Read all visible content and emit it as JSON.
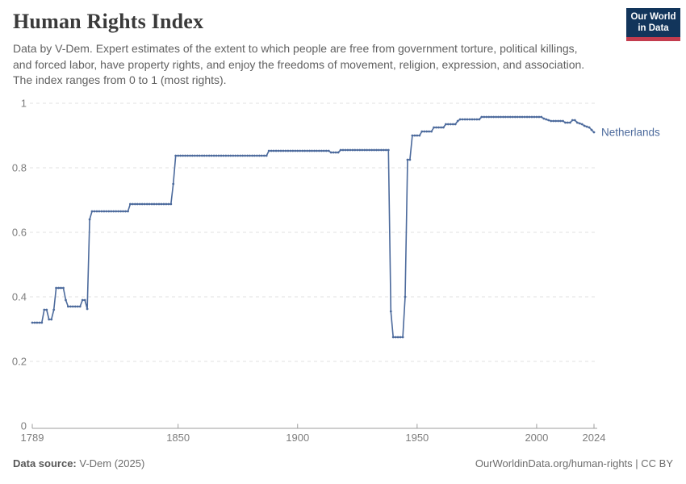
{
  "header": {
    "title": "Human Rights Index",
    "subtitle": "Data by V-Dem. Expert estimates of the extent to which people are free from government torture, political killings, and forced labor, have property rights, and enjoy the freedoms of movement, religion, expression, and association. The index ranges from 0 to 1 (most rights)."
  },
  "logo": {
    "line1": "Our World",
    "line2": "in Data",
    "bg_color": "#12355b",
    "accent_color": "#c33c4e"
  },
  "chart_data": {
    "type": "line",
    "title": "Human Rights Index",
    "xlabel": "",
    "ylabel": "",
    "xlim": [
      1789,
      2024
    ],
    "ylim": [
      0,
      1
    ],
    "xticks": [
      1789,
      1850,
      1900,
      1950,
      2000,
      2024
    ],
    "yticks": [
      0,
      0.2,
      0.4,
      0.6,
      0.8,
      1
    ],
    "grid": "horizontal dashed",
    "legend": "entity label at right end of line",
    "colors": {
      "grid": "#e2e2e2",
      "axis": "#9e9e9e",
      "tick_text": "#7d7d7d"
    },
    "series": [
      {
        "name": "Netherlands",
        "color": "#4c6a9c",
        "points": [
          [
            1789,
            0.32
          ],
          [
            1790,
            0.32
          ],
          [
            1791,
            0.32
          ],
          [
            1792,
            0.32
          ],
          [
            1793,
            0.32
          ],
          [
            1794,
            0.36
          ],
          [
            1795,
            0.36
          ],
          [
            1796,
            0.33
          ],
          [
            1797,
            0.33
          ],
          [
            1798,
            0.36
          ],
          [
            1799,
            0.4275
          ],
          [
            1800,
            0.4275
          ],
          [
            1801,
            0.4275
          ],
          [
            1802,
            0.4275
          ],
          [
            1803,
            0.39
          ],
          [
            1804,
            0.37
          ],
          [
            1805,
            0.37
          ],
          [
            1806,
            0.37
          ],
          [
            1807,
            0.37
          ],
          [
            1808,
            0.37
          ],
          [
            1809,
            0.37
          ],
          [
            1810,
            0.39
          ],
          [
            1811,
            0.39
          ],
          [
            1812,
            0.3625
          ],
          [
            1813,
            0.64
          ],
          [
            1814,
            0.665
          ],
          [
            1815,
            0.665
          ],
          [
            1816,
            0.665
          ],
          [
            1817,
            0.665
          ],
          [
            1818,
            0.665
          ],
          [
            1819,
            0.665
          ],
          [
            1820,
            0.665
          ],
          [
            1821,
            0.665
          ],
          [
            1822,
            0.665
          ],
          [
            1823,
            0.665
          ],
          [
            1824,
            0.665
          ],
          [
            1825,
            0.665
          ],
          [
            1826,
            0.665
          ],
          [
            1827,
            0.665
          ],
          [
            1828,
            0.665
          ],
          [
            1829,
            0.665
          ],
          [
            1830,
            0.6875
          ],
          [
            1831,
            0.6875
          ],
          [
            1832,
            0.6875
          ],
          [
            1833,
            0.6875
          ],
          [
            1834,
            0.6875
          ],
          [
            1835,
            0.6875
          ],
          [
            1836,
            0.6875
          ],
          [
            1837,
            0.6875
          ],
          [
            1838,
            0.6875
          ],
          [
            1839,
            0.6875
          ],
          [
            1840,
            0.6875
          ],
          [
            1841,
            0.6875
          ],
          [
            1842,
            0.6875
          ],
          [
            1843,
            0.6875
          ],
          [
            1844,
            0.6875
          ],
          [
            1845,
            0.6875
          ],
          [
            1846,
            0.6875
          ],
          [
            1847,
            0.6875
          ],
          [
            1848,
            0.75
          ],
          [
            1849,
            0.8375
          ],
          [
            1850,
            0.8375
          ],
          [
            1851,
            0.8375
          ],
          [
            1852,
            0.8375
          ],
          [
            1853,
            0.8375
          ],
          [
            1854,
            0.8375
          ],
          [
            1855,
            0.8375
          ],
          [
            1856,
            0.8375
          ],
          [
            1857,
            0.8375
          ],
          [
            1858,
            0.8375
          ],
          [
            1859,
            0.8375
          ],
          [
            1860,
            0.8375
          ],
          [
            1861,
            0.8375
          ],
          [
            1862,
            0.8375
          ],
          [
            1863,
            0.8375
          ],
          [
            1864,
            0.8375
          ],
          [
            1865,
            0.8375
          ],
          [
            1866,
            0.8375
          ],
          [
            1867,
            0.8375
          ],
          [
            1868,
            0.8375
          ],
          [
            1869,
            0.8375
          ],
          [
            1870,
            0.8375
          ],
          [
            1871,
            0.8375
          ],
          [
            1872,
            0.8375
          ],
          [
            1873,
            0.8375
          ],
          [
            1874,
            0.8375
          ],
          [
            1875,
            0.8375
          ],
          [
            1876,
            0.8375
          ],
          [
            1877,
            0.8375
          ],
          [
            1878,
            0.8375
          ],
          [
            1879,
            0.8375
          ],
          [
            1880,
            0.8375
          ],
          [
            1881,
            0.8375
          ],
          [
            1882,
            0.8375
          ],
          [
            1883,
            0.8375
          ],
          [
            1884,
            0.8375
          ],
          [
            1885,
            0.8375
          ],
          [
            1886,
            0.8375
          ],
          [
            1887,
            0.8375
          ],
          [
            1888,
            0.8525
          ],
          [
            1889,
            0.8525
          ],
          [
            1890,
            0.8525
          ],
          [
            1891,
            0.8525
          ],
          [
            1892,
            0.8525
          ],
          [
            1893,
            0.8525
          ],
          [
            1894,
            0.8525
          ],
          [
            1895,
            0.8525
          ],
          [
            1896,
            0.8525
          ],
          [
            1897,
            0.8525
          ],
          [
            1898,
            0.8525
          ],
          [
            1899,
            0.8525
          ],
          [
            1900,
            0.8525
          ],
          [
            1901,
            0.8525
          ],
          [
            1902,
            0.8525
          ],
          [
            1903,
            0.8525
          ],
          [
            1904,
            0.8525
          ],
          [
            1905,
            0.8525
          ],
          [
            1906,
            0.8525
          ],
          [
            1907,
            0.8525
          ],
          [
            1908,
            0.8525
          ],
          [
            1909,
            0.8525
          ],
          [
            1910,
            0.8525
          ],
          [
            1911,
            0.8525
          ],
          [
            1912,
            0.8525
          ],
          [
            1913,
            0.8525
          ],
          [
            1914,
            0.8475
          ],
          [
            1915,
            0.8475
          ],
          [
            1916,
            0.8475
          ],
          [
            1917,
            0.8475
          ],
          [
            1918,
            0.855
          ],
          [
            1919,
            0.855
          ],
          [
            1920,
            0.855
          ],
          [
            1921,
            0.855
          ],
          [
            1922,
            0.855
          ],
          [
            1923,
            0.855
          ],
          [
            1924,
            0.855
          ],
          [
            1925,
            0.855
          ],
          [
            1926,
            0.855
          ],
          [
            1927,
            0.855
          ],
          [
            1928,
            0.855
          ],
          [
            1929,
            0.855
          ],
          [
            1930,
            0.855
          ],
          [
            1931,
            0.855
          ],
          [
            1932,
            0.855
          ],
          [
            1933,
            0.855
          ],
          [
            1934,
            0.855
          ],
          [
            1935,
            0.855
          ],
          [
            1936,
            0.855
          ],
          [
            1937,
            0.855
          ],
          [
            1938,
            0.855
          ],
          [
            1939,
            0.355
          ],
          [
            1940,
            0.275
          ],
          [
            1941,
            0.275
          ],
          [
            1942,
            0.275
          ],
          [
            1943,
            0.275
          ],
          [
            1944,
            0.275
          ],
          [
            1945,
            0.4
          ],
          [
            1946,
            0.825
          ],
          [
            1947,
            0.825
          ],
          [
            1948,
            0.9
          ],
          [
            1949,
            0.9
          ],
          [
            1950,
            0.9
          ],
          [
            1951,
            0.9
          ],
          [
            1952,
            0.9125
          ],
          [
            1953,
            0.9125
          ],
          [
            1954,
            0.9125
          ],
          [
            1955,
            0.9125
          ],
          [
            1956,
            0.9125
          ],
          [
            1957,
            0.925
          ],
          [
            1958,
            0.925
          ],
          [
            1959,
            0.925
          ],
          [
            1960,
            0.925
          ],
          [
            1961,
            0.925
          ],
          [
            1962,
            0.935
          ],
          [
            1963,
            0.935
          ],
          [
            1964,
            0.935
          ],
          [
            1965,
            0.935
          ],
          [
            1966,
            0.935
          ],
          [
            1967,
            0.945
          ],
          [
            1968,
            0.95
          ],
          [
            1969,
            0.95
          ],
          [
            1970,
            0.95
          ],
          [
            1971,
            0.95
          ],
          [
            1972,
            0.95
          ],
          [
            1973,
            0.95
          ],
          [
            1974,
            0.95
          ],
          [
            1975,
            0.95
          ],
          [
            1976,
            0.95
          ],
          [
            1977,
            0.9575
          ],
          [
            1978,
            0.9575
          ],
          [
            1979,
            0.9575
          ],
          [
            1980,
            0.9575
          ],
          [
            1981,
            0.9575
          ],
          [
            1982,
            0.9575
          ],
          [
            1983,
            0.9575
          ],
          [
            1984,
            0.9575
          ],
          [
            1985,
            0.9575
          ],
          [
            1986,
            0.9575
          ],
          [
            1987,
            0.9575
          ],
          [
            1988,
            0.9575
          ],
          [
            1989,
            0.9575
          ],
          [
            1990,
            0.9575
          ],
          [
            1991,
            0.9575
          ],
          [
            1992,
            0.9575
          ],
          [
            1993,
            0.9575
          ],
          [
            1994,
            0.9575
          ],
          [
            1995,
            0.9575
          ],
          [
            1996,
            0.9575
          ],
          [
            1997,
            0.9575
          ],
          [
            1998,
            0.9575
          ],
          [
            1999,
            0.9575
          ],
          [
            2000,
            0.9575
          ],
          [
            2001,
            0.9575
          ],
          [
            2002,
            0.9575
          ],
          [
            2003,
            0.9525
          ],
          [
            2004,
            0.95
          ],
          [
            2005,
            0.9475
          ],
          [
            2006,
            0.945
          ],
          [
            2007,
            0.945
          ],
          [
            2008,
            0.945
          ],
          [
            2009,
            0.945
          ],
          [
            2010,
            0.945
          ],
          [
            2011,
            0.945
          ],
          [
            2012,
            0.94
          ],
          [
            2013,
            0.94
          ],
          [
            2014,
            0.94
          ],
          [
            2015,
            0.9475
          ],
          [
            2016,
            0.9475
          ],
          [
            2017,
            0.94
          ],
          [
            2018,
            0.9375
          ],
          [
            2019,
            0.935
          ],
          [
            2020,
            0.93
          ],
          [
            2021,
            0.9275
          ],
          [
            2022,
            0.925
          ],
          [
            2023,
            0.9175
          ],
          [
            2024,
            0.91
          ]
        ]
      }
    ]
  },
  "footer": {
    "source_label": "Data source:",
    "source_value": " V-Dem (2025)",
    "link": "OurWorldinData.org/human-rights | CC BY"
  }
}
